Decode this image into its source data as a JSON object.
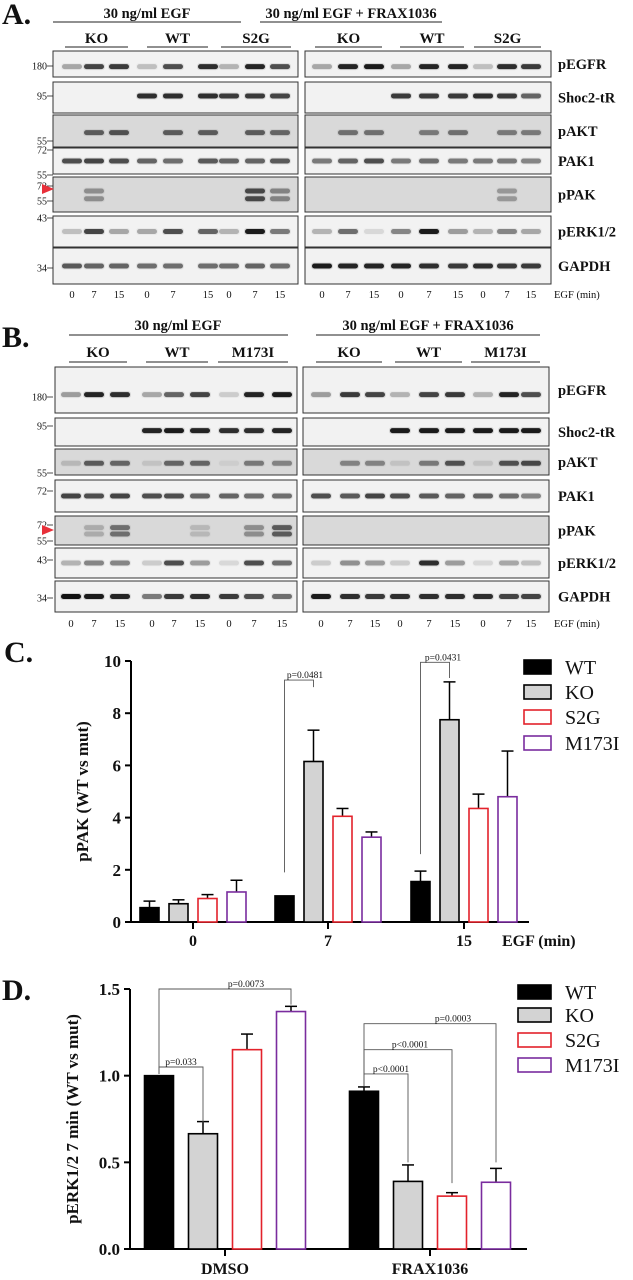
{
  "colors": {
    "WT": "#000000",
    "KO": "#d3d3d3",
    "S2G": "#e3222b",
    "M173I": "#7a2c9e",
    "membrane": "#f2f2f2",
    "membrane_dark": "#d9d9d9",
    "arrow": "#e8303a"
  },
  "panels": [
    {
      "label": "A.",
      "headers": [
        "30 ng/ml EGF",
        "30 ng/ml EGF + FRAX1036"
      ],
      "groups": [
        [
          "KO",
          "WT",
          "S2G"
        ],
        [
          "KO",
          "WT",
          "S2G"
        ]
      ],
      "lanes": [
        "0",
        "7",
        "15",
        "0",
        "7",
        "15",
        "0",
        "7",
        "15"
      ],
      "lane_axis": "EGF (min)",
      "mw_markers": [
        "180",
        "95",
        "55",
        "72",
        "55",
        "72",
        "55",
        "43",
        "34"
      ],
      "rows": [
        {
          "name": "pEGFR",
          "left": [
            0.3,
            0.75,
            0.8,
            0.2,
            0.7,
            0.85,
            0.25,
            0.9,
            0.7
          ],
          "right": [
            0.3,
            0.9,
            0.95,
            0.3,
            0.9,
            0.9,
            0.2,
            0.85,
            0.8
          ]
        },
        {
          "name": "Shoc2-tR",
          "left": [
            0,
            0,
            0,
            0.85,
            0.85,
            0.85,
            0.8,
            0.8,
            0.75
          ],
          "right": [
            0,
            0,
            0,
            0.8,
            0.8,
            0.8,
            0.85,
            0.8,
            0.6
          ]
        },
        {
          "name": "pAKT",
          "left": [
            0,
            0.6,
            0.65,
            0,
            0.6,
            0.6,
            0,
            0.6,
            0.55
          ],
          "right": [
            0,
            0.5,
            0.5,
            0,
            0.45,
            0.5,
            0,
            0.45,
            0.45
          ]
        },
        {
          "name": "PAK1",
          "left": [
            0.7,
            0.75,
            0.7,
            0.6,
            0.55,
            0.65,
            0.6,
            0.6,
            0.65
          ],
          "right": [
            0.5,
            0.6,
            0.7,
            0.5,
            0.55,
            0.5,
            0.5,
            0.5,
            0.45
          ]
        },
        {
          "name": "pPAK",
          "left": [
            0,
            0.35,
            0,
            0,
            0,
            0,
            0,
            0.7,
            0.4
          ],
          "right": [
            0,
            0,
            0,
            0,
            0,
            0,
            0,
            0.3,
            0
          ]
        },
        {
          "name": "pERK1/2",
          "left": [
            0.2,
            0.75,
            0.3,
            0.3,
            0.7,
            0.6,
            0.25,
            0.95,
            0.5
          ],
          "right": [
            0.25,
            0.55,
            0.1,
            0.45,
            0.95,
            0.35,
            0.25,
            0.45,
            0.3
          ]
        },
        {
          "name": "GAPDH",
          "left": [
            0.65,
            0.6,
            0.6,
            0.55,
            0.55,
            0.55,
            0.55,
            0.6,
            0.55
          ],
          "right": [
            0.95,
            0.9,
            0.9,
            0.9,
            0.85,
            0.8,
            0.85,
            0.8,
            0.8
          ]
        }
      ]
    },
    {
      "label": "B.",
      "headers": [
        "30 ng/ml EGF",
        "30 ng/ml EGF + FRAX1036"
      ],
      "groups": [
        [
          "KO",
          "WT",
          "M173I"
        ],
        [
          "KO",
          "WT",
          "M173I"
        ]
      ],
      "lanes": [
        "0",
        "7",
        "15",
        "0",
        "7",
        "15",
        "0",
        "7",
        "15"
      ],
      "lane_axis": "EGF (min)",
      "mw_markers": [
        "180",
        "95",
        "55",
        "72",
        "72",
        "55",
        "43",
        "34"
      ],
      "rows": [
        {
          "name": "pEGFR",
          "left": [
            0.35,
            0.9,
            0.85,
            0.3,
            0.6,
            0.75,
            0.15,
            0.9,
            0.95
          ],
          "right": [
            0.35,
            0.8,
            0.75,
            0.25,
            0.75,
            0.8,
            0.25,
            0.9,
            0.7
          ]
        },
        {
          "name": "Shoc2-tR",
          "left": [
            0,
            0,
            0,
            0.9,
            0.95,
            0.9,
            0.85,
            0.85,
            0.9
          ],
          "right": [
            0,
            0,
            0,
            0.95,
            0.95,
            0.95,
            0.95,
            0.95,
            0.95
          ]
        },
        {
          "name": "pAKT",
          "left": [
            0.15,
            0.6,
            0.55,
            0.1,
            0.55,
            0.55,
            0.05,
            0.45,
            0.4
          ],
          "right": [
            0,
            0.4,
            0.4,
            0.1,
            0.45,
            0.65,
            0.1,
            0.65,
            0.7
          ]
        },
        {
          "name": "PAK1",
          "left": [
            0.75,
            0.7,
            0.75,
            0.7,
            0.7,
            0.6,
            0.6,
            0.55,
            0.55
          ],
          "right": [
            0.7,
            0.65,
            0.75,
            0.7,
            0.65,
            0.6,
            0.6,
            0.55,
            0.45
          ]
        },
        {
          "name": "pPAK",
          "left": [
            0,
            0.2,
            0.5,
            0,
            0,
            0.15,
            0,
            0.35,
            0.6
          ],
          "right": [
            0,
            0,
            0,
            0,
            0,
            0,
            0,
            0,
            0
          ]
        },
        {
          "name": "pERK1/2",
          "left": [
            0.25,
            0.45,
            0.45,
            0.15,
            0.7,
            0.35,
            0.1,
            0.7,
            0.55
          ],
          "right": [
            0.15,
            0.4,
            0.35,
            0.15,
            0.85,
            0.35,
            0.1,
            0.3,
            0.2
          ]
        },
        {
          "name": "GAPDH",
          "left": [
            1,
            0.95,
            0.9,
            0.5,
            0.8,
            0.85,
            0.8,
            0.7,
            0.55
          ],
          "right": [
            0.95,
            0.85,
            0.8,
            0.85,
            0.85,
            0.85,
            0.85,
            0.75,
            0.75
          ]
        }
      ]
    }
  ],
  "chart_data": [
    {
      "panel_label": "C.",
      "type": "bar",
      "categories": [
        "0",
        "7",
        "15"
      ],
      "xlabel": "EGF (min)",
      "ylabel": "pPAK (WT vs mut)",
      "ylim": [
        0,
        10
      ],
      "yticks": [
        "0",
        "2",
        "4",
        "6",
        "8",
        "10"
      ],
      "legend_position": "top-right",
      "series": [
        {
          "name": "WT",
          "values": [
            0.55,
            1.0,
            1.55
          ],
          "errors": [
            0.25,
            0,
            0.4
          ]
        },
        {
          "name": "KO",
          "values": [
            0.7,
            6.15,
            7.75
          ],
          "errors": [
            0.15,
            1.2,
            1.45
          ]
        },
        {
          "name": "S2G",
          "values": [
            0.9,
            4.05,
            4.35
          ],
          "errors": [
            0.15,
            0.3,
            0.55
          ]
        },
        {
          "name": "M173I",
          "values": [
            1.15,
            3.25,
            4.8
          ],
          "errors": [
            0.45,
            0.2,
            1.75
          ]
        }
      ],
      "comparisons": [
        {
          "category": "7",
          "from": "WT",
          "to": "KO",
          "p": "p=0.0481"
        },
        {
          "category": "15",
          "from": "WT",
          "to": "KO",
          "p": "p=0.0431"
        }
      ]
    },
    {
      "panel_label": "D.",
      "type": "bar",
      "categories": [
        "DMSO",
        "FRAX1036"
      ],
      "xlabel": "",
      "ylabel": "pERK1/2 7 min (WT vs mut)",
      "ylim": [
        0,
        1.5
      ],
      "yticks": [
        "0.0",
        "0.5",
        "1.0",
        "1.5"
      ],
      "legend_position": "top-right",
      "series": [
        {
          "name": "WT",
          "values": [
            1.0,
            0.91
          ],
          "errors": [
            0,
            0.025
          ]
        },
        {
          "name": "KO",
          "values": [
            0.665,
            0.39
          ],
          "errors": [
            0.07,
            0.095
          ]
        },
        {
          "name": "S2G",
          "values": [
            1.15,
            0.305
          ],
          "errors": [
            0.09,
            0.02
          ]
        },
        {
          "name": "M173I",
          "values": [
            1.37,
            0.385
          ],
          "errors": [
            0.03,
            0.08
          ]
        }
      ],
      "comparisons": [
        {
          "category": "DMSO",
          "from": "WT",
          "to": "KO",
          "p": "p=0.033"
        },
        {
          "category": "DMSO",
          "from": "WT",
          "to": "M173I",
          "p": "p=0.0073"
        },
        {
          "category": "FRAX1036",
          "from": "WT",
          "to": "KO",
          "p": "p<0.0001"
        },
        {
          "category": "FRAX1036",
          "from": "WT",
          "to": "S2G",
          "p": "p<0.0001"
        },
        {
          "category": "FRAX1036",
          "from": "WT",
          "to": "M173I",
          "p": "p=0.0003"
        }
      ]
    }
  ]
}
